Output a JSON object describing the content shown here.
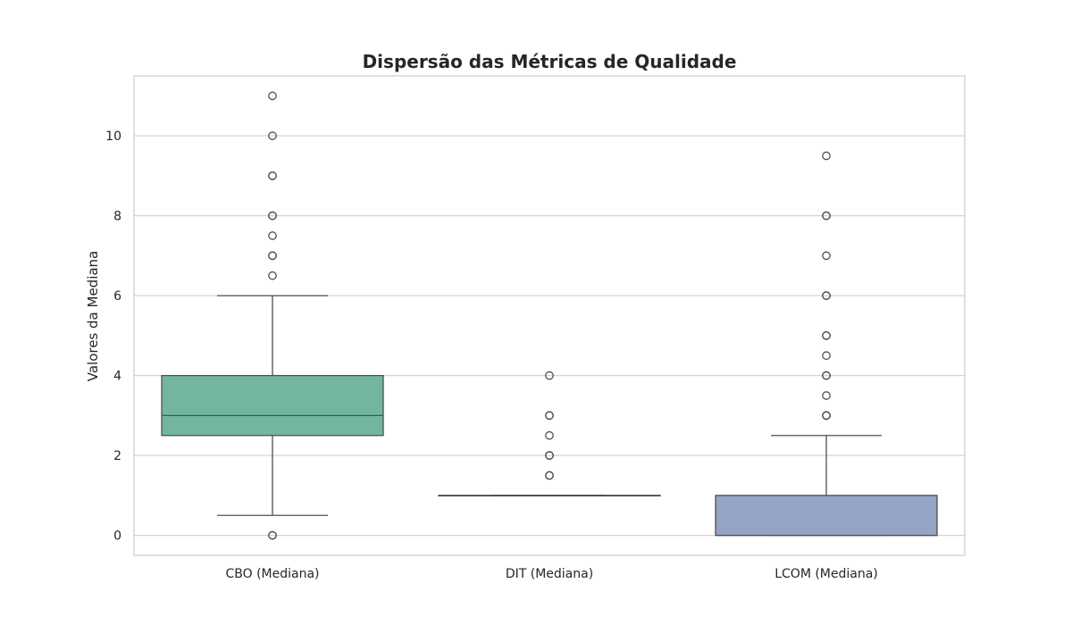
{
  "chart_data": {
    "type": "box",
    "title": "Dispersão das Métricas de Qualidade",
    "xlabel": "",
    "ylabel": "Valores da Mediana",
    "ylim": [
      -0.5,
      11.5
    ],
    "yticks": [
      0,
      2,
      4,
      6,
      8,
      10
    ],
    "grid": "horizontal",
    "categories": [
      "CBO (Mediana)",
      "DIT (Mediana)",
      "LCOM (Mediana)"
    ],
    "boxes": [
      {
        "category": "CBO (Mediana)",
        "color": "#73b6a0",
        "whisker_low": 0.5,
        "q1": 2.5,
        "median": 3,
        "q3": 4,
        "whisker_high": 6,
        "outliers": [
          0,
          0,
          6.5,
          7,
          7,
          7.5,
          8,
          8,
          9,
          9,
          10,
          11
        ]
      },
      {
        "category": "DIT (Mediana)",
        "color": "#f0a283",
        "whisker_low": 1,
        "q1": 1,
        "median": 1,
        "q3": 1,
        "whisker_high": 1,
        "outliers": [
          1.5,
          1.5,
          2,
          2,
          2.5,
          3,
          3,
          4
        ]
      },
      {
        "category": "LCOM (Mediana)",
        "color": "#95a4c5",
        "whisker_low": 0,
        "q1": 0,
        "median": 0,
        "q3": 1,
        "whisker_high": 2.5,
        "outliers": [
          3,
          3,
          3,
          3.5,
          4,
          4,
          4.5,
          5,
          5,
          6,
          6,
          7,
          8,
          8,
          9.5
        ]
      }
    ]
  }
}
